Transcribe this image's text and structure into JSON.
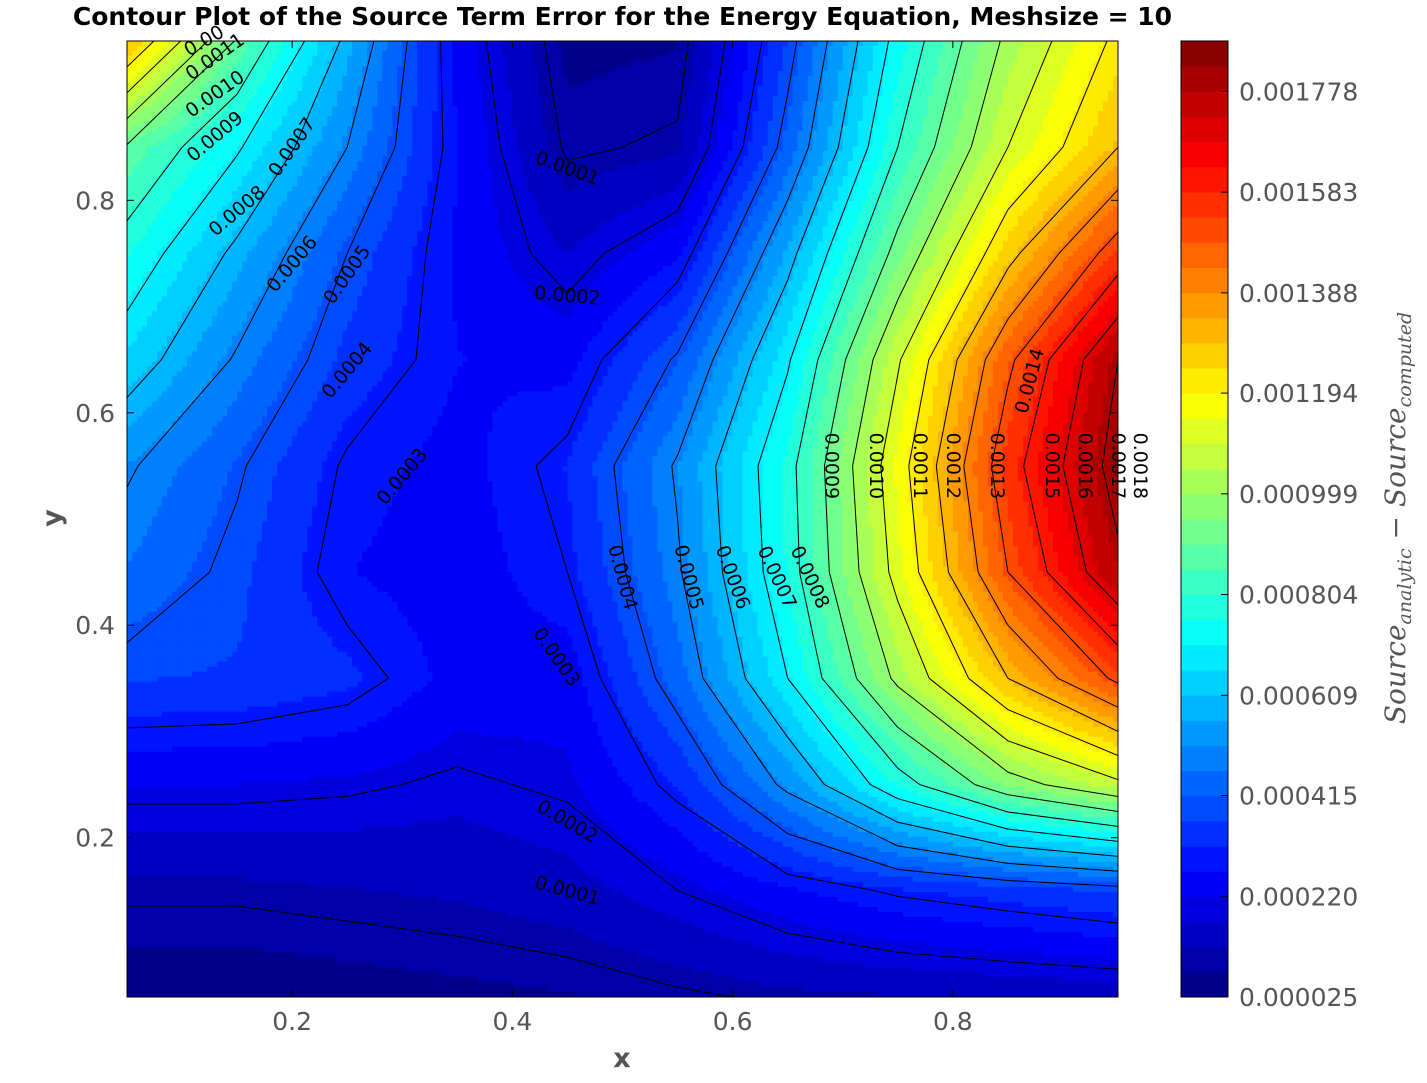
{
  "chart_data": {
    "type": "contour",
    "title": "Contour Plot of the Source Term Error for the Energy Equation, Meshsize = 10",
    "xlabel": "x",
    "ylabel": "y",
    "xlim": [
      0.05,
      0.95
    ],
    "ylim": [
      0.05,
      0.95
    ],
    "x_ticks": [
      0.2,
      0.4,
      0.6,
      0.8
    ],
    "y_ticks": [
      0.2,
      0.4,
      0.6,
      0.8
    ],
    "x_tick_labels": [
      "0.2",
      "0.4",
      "0.6",
      "0.8"
    ],
    "y_tick_labels": [
      "0.2",
      "0.4",
      "0.6",
      "0.8"
    ],
    "x": [
      0.05,
      0.15,
      0.25,
      0.35,
      0.45,
      0.55,
      0.65,
      0.75,
      0.85,
      0.95
    ],
    "y": [
      0.05,
      0.15,
      0.25,
      0.35,
      0.45,
      0.55,
      0.65,
      0.75,
      0.85,
      0.95
    ],
    "z": [
      [
        4e-05,
        4e-05,
        5e-05,
        6e-05,
        7e-05,
        9e-05,
        0.00011,
        0.00012,
        0.00013,
        0.00014
      ],
      [
        0.00011,
        0.00011,
        0.00012,
        0.00013,
        0.00015,
        0.0002,
        0.00026,
        0.00031,
        0.00034,
        0.00037
      ],
      [
        0.00022,
        0.00022,
        0.00021,
        0.00019,
        0.00021,
        0.00032,
        0.00052,
        0.00076,
        0.00096,
        0.00108
      ],
      [
        0.00037,
        0.00036,
        0.00033,
        0.00025,
        0.00024,
        0.00044,
        0.0007,
        0.00102,
        0.0013,
        0.00152
      ],
      [
        0.00046,
        0.00038,
        0.00027,
        0.00024,
        0.0003,
        0.00049,
        0.00076,
        0.00113,
        0.0015,
        0.00178
      ],
      [
        0.00051,
        0.00041,
        0.00029,
        0.00025,
        0.00032,
        0.00051,
        0.00077,
        0.00116,
        0.00156,
        0.00184
      ],
      [
        0.00065,
        0.00049,
        0.00035,
        0.00027,
        0.00025,
        0.00041,
        0.00069,
        0.00109,
        0.00148,
        0.0018
      ],
      [
        0.00076,
        0.00058,
        0.0004,
        0.00026,
        0.00017,
        0.00026,
        0.00057,
        0.00093,
        0.00127,
        0.00155
      ],
      [
        0.00089,
        0.00071,
        0.0005,
        0.00027,
        9e-05,
        0.00011,
        0.00043,
        0.0008,
        0.0011,
        0.0013
      ],
      [
        0.0013,
        0.00089,
        0.00058,
        0.00025,
        6e-05,
        7e-05,
        0.00037,
        0.00073,
        0.00102,
        0.00122
      ]
    ],
    "levels": [
      2.5e-05,
      7.37e-05,
      0.0001224,
      0.0001711,
      0.0002198,
      0.0002685,
      0.0003172,
      0.0003659,
      0.0004146,
      0.0004633,
      0.000512,
      0.0005607,
      0.0006094,
      0.0006581,
      0.0007068,
      0.0007555,
      0.0008042,
      0.0008529,
      0.0009016,
      0.0009503,
      0.000999,
      0.0010477,
      0.0010964,
      0.0011451,
      0.0011938,
      0.0012425,
      0.0012912,
      0.0013399,
      0.0013886,
      0.0014373,
      0.001486,
      0.0015347,
      0.0015834,
      0.0016321,
      0.0016808,
      0.0017295,
      0.0017782,
      0.0018269,
      0.0018756
    ],
    "line_levels": [
      0.0001,
      0.0002,
      0.0003,
      0.0004,
      0.0005,
      0.0006,
      0.0007,
      0.0008,
      0.0009,
      0.001,
      0.0011,
      0.0012,
      0.0013,
      0.0014,
      0.0015,
      0.0016,
      0.0017,
      0.0018
    ],
    "contour_labels": [
      {
        "text": "0.0001",
        "x": 0.45,
        "y": 0.83,
        "angle": 20
      },
      {
        "text": "0.0002",
        "x": 0.45,
        "y": 0.71,
        "angle": 5
      },
      {
        "text": "0.0003",
        "x": 0.3,
        "y": 0.54,
        "angle": -50
      },
      {
        "text": "0.0004",
        "x": 0.25,
        "y": 0.64,
        "angle": -50
      },
      {
        "text": "0.0005",
        "x": 0.25,
        "y": 0.73,
        "angle": -55
      },
      {
        "text": "0.0006",
        "x": 0.2,
        "y": 0.74,
        "angle": -50
      },
      {
        "text": "0.0007",
        "x": 0.2,
        "y": 0.85,
        "angle": -55
      },
      {
        "text": "0.0008",
        "x": 0.15,
        "y": 0.79,
        "angle": -40
      },
      {
        "text": "0.0009",
        "x": 0.13,
        "y": 0.86,
        "angle": -40
      },
      {
        "text": "0.0010",
        "x": 0.13,
        "y": 0.9,
        "angle": -35
      },
      {
        "text": "0.0011",
        "x": 0.13,
        "y": 0.935,
        "angle": -35
      },
      {
        "text": "0.00",
        "x": 0.12,
        "y": 0.95,
        "angle": -30
      },
      {
        "text": "0.0009",
        "x": 0.69,
        "y": 0.55,
        "angle": 90
      },
      {
        "text": "0.0010",
        "x": 0.73,
        "y": 0.55,
        "angle": 90
      },
      {
        "text": "0.0011",
        "x": 0.77,
        "y": 0.55,
        "angle": 90
      },
      {
        "text": "0.0012",
        "x": 0.8,
        "y": 0.55,
        "angle": 90
      },
      {
        "text": "0.0013",
        "x": 0.84,
        "y": 0.55,
        "angle": 90
      },
      {
        "text": "0.0014",
        "x": 0.87,
        "y": 0.63,
        "angle": -75
      },
      {
        "text": "0.0015",
        "x": 0.89,
        "y": 0.55,
        "angle": 90
      },
      {
        "text": "0.0016",
        "x": 0.92,
        "y": 0.55,
        "angle": 90
      },
      {
        "text": "0.0017",
        "x": 0.95,
        "y": 0.55,
        "angle": 90
      },
      {
        "text": "0.0018",
        "x": 0.97,
        "y": 0.55,
        "angle": 90
      },
      {
        "text": "0.0004",
        "x": 0.5,
        "y": 0.445,
        "angle": 75
      },
      {
        "text": "0.0005",
        "x": 0.56,
        "y": 0.445,
        "angle": 75
      },
      {
        "text": "0.0006",
        "x": 0.6,
        "y": 0.445,
        "angle": 70
      },
      {
        "text": "0.0007",
        "x": 0.64,
        "y": 0.445,
        "angle": 65
      },
      {
        "text": "0.0008",
        "x": 0.67,
        "y": 0.445,
        "angle": 65
      },
      {
        "text": "0.0003",
        "x": 0.44,
        "y": 0.37,
        "angle": 55
      },
      {
        "text": "0.0002",
        "x": 0.45,
        "y": 0.215,
        "angle": 30
      },
      {
        "text": "0.0001",
        "x": 0.45,
        "y": 0.15,
        "angle": 15
      }
    ],
    "colorbar": {
      "ticks": [
        2.5e-05,
        0.00022,
        0.000415,
        0.000609,
        0.000804,
        0.000999,
        0.001194,
        0.001388,
        0.001583,
        0.001778
      ],
      "tick_labels": [
        "0.000025",
        "0.000220",
        "0.000415",
        "0.000609",
        "0.000804",
        "0.000999",
        "0.001194",
        "0.001388",
        "0.001583",
        "0.001778"
      ],
      "label": "Source_analytic − Source_computed",
      "label_main_1": "Source",
      "label_sub_1": "analytic",
      "label_op": " − ",
      "label_main_2": "Source",
      "label_sub_2": "computed",
      "colormap": "jet"
    }
  }
}
